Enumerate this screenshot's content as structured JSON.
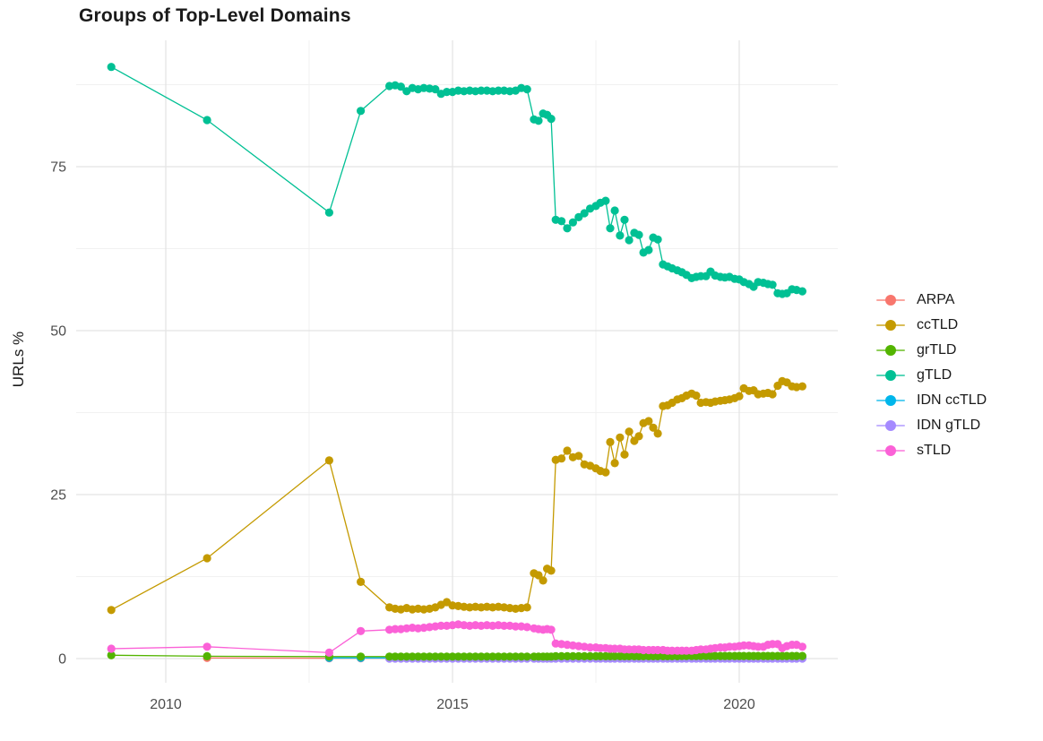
{
  "title": "Groups of Top-Level Domains",
  "chart_data": {
    "type": "scatter",
    "title": "Groups of Top-Level Domains",
    "xlabel": "",
    "ylabel": "URLs %",
    "grid": true,
    "legend_position": "right",
    "xlim": [
      2008.45,
      2021.7
    ],
    "ylim": [
      -3.7,
      94
    ],
    "x_ticks": [
      2010,
      2015,
      2020
    ],
    "x_minor_ticks": [
      2012.5,
      2017.5
    ],
    "y_ticks": [
      0,
      25,
      50,
      75
    ],
    "y_minor_ticks": [
      12.5,
      37.5,
      62.5,
      87.5
    ],
    "x": [
      2009.05,
      2010.72,
      2012.85,
      2013.4,
      2013.9,
      2014.0,
      2014.1,
      2014.2,
      2014.3,
      2014.4,
      2014.5,
      2014.6,
      2014.7,
      2014.8,
      2014.9,
      2015.0,
      2015.1,
      2015.2,
      2015.3,
      2015.4,
      2015.5,
      2015.6,
      2015.7,
      2015.8,
      2015.9,
      2016.0,
      2016.1,
      2016.2,
      2016.3,
      2016.42,
      2016.5,
      2016.58,
      2016.65,
      2016.72,
      2016.8,
      2016.9,
      2017.0,
      2017.1,
      2017.2,
      2017.3,
      2017.4,
      2017.5,
      2017.58,
      2017.67,
      2017.75,
      2017.83,
      2017.92,
      2018.0,
      2018.08,
      2018.17,
      2018.25,
      2018.33,
      2018.42,
      2018.5,
      2018.58,
      2018.67,
      2018.75,
      2018.83,
      2018.92,
      2019.0,
      2019.08,
      2019.17,
      2019.25,
      2019.33,
      2019.42,
      2019.5,
      2019.58,
      2019.67,
      2019.75,
      2019.83,
      2019.92,
      2020.0,
      2020.08,
      2020.17,
      2020.25,
      2020.33,
      2020.42,
      2020.5,
      2020.58,
      2020.67,
      2020.75,
      2020.83,
      2020.92,
      2021.0,
      2021.1
    ],
    "series": [
      {
        "name": "ARPA",
        "color": "#F8766D",
        "values": [
          null,
          0.1,
          0.05,
          0.05,
          0.05,
          0.05,
          0.05,
          0.05,
          0.05,
          0.05,
          0.05,
          0.05,
          0.05,
          0.05,
          0.05,
          0.05,
          0.05,
          0.05,
          0.05,
          0.05,
          0.05,
          0.05,
          0.05,
          0.05,
          0.05,
          0.05,
          0.05,
          0.05,
          0.05,
          0.05,
          0.05,
          0.05,
          0.05,
          0.05,
          0.05,
          0.05,
          0.05,
          0.05,
          0.05,
          0.05,
          0.05,
          0.05,
          0.05,
          0.05,
          0.05,
          0.05,
          0.05,
          0.05,
          0.05,
          0.05,
          0.05,
          0.05,
          0.05,
          0.05,
          0.05,
          0.05,
          0.05,
          0.05,
          0.05,
          0.05,
          0.05,
          0.05,
          0.05,
          0.05,
          0.05,
          0.05,
          0.05,
          0.05,
          0.05,
          0.05,
          0.05,
          0.05,
          0.05,
          0.05,
          0.05,
          0.05,
          0.05,
          0.05,
          0.05,
          0.05,
          0.05,
          0.05,
          0.05,
          0.05,
          0.05
        ]
      },
      {
        "name": "ccTLD",
        "color": "#C49A00",
        "values": [
          7.4,
          15.3,
          30.2,
          11.7,
          7.8,
          7.6,
          7.5,
          7.7,
          7.5,
          7.6,
          7.5,
          7.6,
          7.8,
          8.2,
          8.6,
          8.1,
          8.0,
          7.9,
          7.8,
          7.9,
          7.8,
          7.9,
          7.8,
          7.9,
          7.8,
          7.7,
          7.6,
          7.7,
          7.8,
          13.0,
          12.7,
          11.9,
          13.7,
          13.4,
          30.3,
          30.5,
          31.7,
          30.7,
          30.9,
          29.6,
          29.4,
          29.0,
          28.6,
          28.4,
          33.0,
          29.8,
          33.7,
          31.1,
          34.6,
          33.2,
          33.9,
          35.9,
          36.2,
          35.2,
          34.3,
          38.5,
          38.6,
          39.0,
          39.5,
          39.7,
          40.1,
          40.4,
          40.1,
          39.0,
          39.1,
          39.0,
          39.2,
          39.3,
          39.4,
          39.5,
          39.7,
          40.0,
          41.2,
          40.8,
          40.9,
          40.3,
          40.4,
          40.5,
          40.3,
          41.6,
          42.3,
          42.1,
          41.5,
          41.4,
          41.5
        ]
      },
      {
        "name": "grTLD",
        "color": "#53B400",
        "values": [
          0.5,
          0.35,
          0.3,
          0.3,
          0.3,
          0.3,
          0.3,
          0.3,
          0.3,
          0.3,
          0.3,
          0.3,
          0.3,
          0.3,
          0.3,
          0.3,
          0.3,
          0.3,
          0.3,
          0.3,
          0.3,
          0.3,
          0.3,
          0.3,
          0.3,
          0.3,
          0.3,
          0.3,
          0.3,
          0.3,
          0.3,
          0.3,
          0.3,
          0.3,
          0.35,
          0.35,
          0.35,
          0.35,
          0.35,
          0.35,
          0.35,
          0.35,
          0.35,
          0.35,
          0.35,
          0.35,
          0.35,
          0.35,
          0.35,
          0.35,
          0.35,
          0.35,
          0.35,
          0.35,
          0.35,
          0.35,
          0.35,
          0.35,
          0.35,
          0.4,
          0.4,
          0.4,
          0.4,
          0.4,
          0.4,
          0.4,
          0.4,
          0.4,
          0.4,
          0.4,
          0.4,
          0.4,
          0.4,
          0.4,
          0.4,
          0.4,
          0.4,
          0.4,
          0.4,
          0.4,
          0.4,
          0.4,
          0.4,
          0.4,
          0.4
        ]
      },
      {
        "name": "gTLD",
        "color": "#00C094",
        "values": [
          90.2,
          82.1,
          68.0,
          83.5,
          87.3,
          87.4,
          87.2,
          86.5,
          87.0,
          86.8,
          87.0,
          86.9,
          86.8,
          86.1,
          86.4,
          86.4,
          86.6,
          86.5,
          86.6,
          86.5,
          86.6,
          86.6,
          86.5,
          86.6,
          86.6,
          86.5,
          86.6,
          87.0,
          86.8,
          82.2,
          82.0,
          83.1,
          82.9,
          82.3,
          66.9,
          66.7,
          65.6,
          66.5,
          67.3,
          67.9,
          68.6,
          69.0,
          69.5,
          69.8,
          65.6,
          68.3,
          64.5,
          66.9,
          63.8,
          64.9,
          64.6,
          61.9,
          62.3,
          64.2,
          63.9,
          60.1,
          59.8,
          59.5,
          59.2,
          58.9,
          58.5,
          58.0,
          58.2,
          58.3,
          58.3,
          59.0,
          58.4,
          58.2,
          58.1,
          58.2,
          57.9,
          57.8,
          57.4,
          57.1,
          56.7,
          57.4,
          57.3,
          57.1,
          57.0,
          55.7,
          55.6,
          55.7,
          56.3,
          56.2,
          56.0
        ]
      },
      {
        "name": "IDN ccTLD",
        "color": "#00B6EB",
        "values": [
          null,
          null,
          0.1,
          0.1,
          0.1,
          0.1,
          0.1,
          0.08,
          0.08,
          0.08,
          0.08,
          0.08,
          0.08,
          0.08,
          0.08,
          0.08,
          0.08,
          0.08,
          0.08,
          0.08,
          0.08,
          0.08,
          0.08,
          0.08,
          0.08,
          0.08,
          0.08,
          0.08,
          0.08,
          0.08,
          0.08,
          0.08,
          0.08,
          0.08,
          0.08,
          0.08,
          0.08,
          0.08,
          0.08,
          0.08,
          0.08,
          0.08,
          0.08,
          0.08,
          0.08,
          0.08,
          0.08,
          0.08,
          0.08,
          0.08,
          0.08,
          0.08,
          0.08,
          0.08,
          0.08,
          0.08,
          0.08,
          0.08,
          0.08,
          0.08,
          0.08,
          0.08,
          0.08,
          0.08,
          0.08,
          0.08,
          0.08,
          0.08,
          0.08,
          0.08,
          0.08,
          0.08,
          0.08,
          0.08,
          0.08,
          0.08,
          0.08,
          0.08,
          0.08,
          0.08,
          0.08,
          0.08,
          0.08,
          0.08,
          0.08
        ]
      },
      {
        "name": "IDN gTLD",
        "color": "#A58AFF",
        "values": [
          null,
          null,
          null,
          null,
          0,
          0,
          0,
          0,
          0,
          0,
          0,
          0,
          0,
          0,
          0,
          0,
          0,
          0,
          0,
          0,
          0,
          0,
          0,
          0,
          0,
          0,
          0,
          0,
          0,
          0,
          0,
          0,
          0,
          0,
          0,
          0,
          0,
          0,
          0,
          0,
          0,
          0,
          0,
          0,
          0,
          0,
          0,
          0,
          0,
          0,
          0,
          0,
          0,
          0,
          0,
          0,
          0,
          0,
          0,
          0,
          0,
          0,
          0,
          0,
          0,
          0,
          0,
          0,
          0,
          0,
          0,
          0,
          0,
          0,
          0,
          0,
          0,
          0,
          0,
          0,
          0,
          0,
          0,
          0,
          0
        ]
      },
      {
        "name": "sTLD",
        "color": "#FB61D7",
        "values": [
          1.5,
          1.8,
          0.9,
          4.2,
          4.4,
          4.5,
          4.5,
          4.6,
          4.7,
          4.6,
          4.7,
          4.8,
          4.9,
          5.0,
          5.0,
          5.1,
          5.2,
          5.1,
          5.0,
          5.1,
          5.0,
          5.1,
          5.0,
          5.1,
          5.0,
          5.0,
          4.9,
          4.9,
          4.8,
          4.6,
          4.5,
          4.4,
          4.5,
          4.4,
          2.3,
          2.2,
          2.1,
          2.0,
          1.9,
          1.8,
          1.7,
          1.7,
          1.6,
          1.6,
          1.5,
          1.5,
          1.5,
          1.4,
          1.4,
          1.4,
          1.4,
          1.3,
          1.3,
          1.3,
          1.3,
          1.3,
          1.2,
          1.2,
          1.2,
          1.2,
          1.2,
          1.2,
          1.3,
          1.4,
          1.4,
          1.5,
          1.6,
          1.7,
          1.7,
          1.8,
          1.8,
          1.9,
          2.0,
          2.0,
          1.9,
          1.8,
          1.8,
          2.1,
          2.2,
          2.2,
          1.6,
          1.9,
          2.1,
          2.1,
          1.8
        ]
      }
    ],
    "draw_order": [
      "ARPA",
      "IDN ccTLD",
      "IDN gTLD",
      "grTLD",
      "ccTLD",
      "gTLD",
      "sTLD"
    ]
  },
  "legend": {
    "items": [
      {
        "label": "ARPA",
        "color": "#F8766D"
      },
      {
        "label": "ccTLD",
        "color": "#C49A00"
      },
      {
        "label": "grTLD",
        "color": "#53B400"
      },
      {
        "label": "gTLD",
        "color": "#00C094"
      },
      {
        "label": "IDN ccTLD",
        "color": "#00B6EB"
      },
      {
        "label": "IDN gTLD",
        "color": "#A58AFF"
      },
      {
        "label": "sTLD",
        "color": "#FB61D7"
      }
    ]
  }
}
